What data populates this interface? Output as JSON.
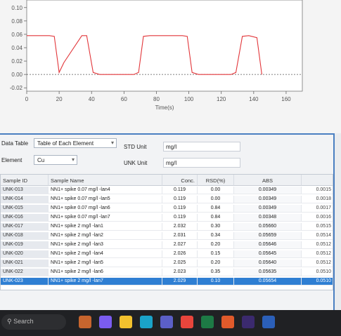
{
  "chart_data": {
    "type": "line",
    "xlabel": "Time(s)",
    "x_ticks": [
      "0",
      "20",
      "40",
      "60",
      "80",
      "100",
      "120",
      "140",
      "160"
    ],
    "y_ticks": [
      "0.10",
      "0.08",
      "0.06",
      "0.04",
      "0.02",
      "0.00",
      "-0.02"
    ],
    "xlim": [
      0,
      170
    ],
    "ylim": [
      -0.025,
      0.105
    ],
    "series": [
      {
        "color": "#e2363a",
        "x": [
          0,
          14,
          17,
          20,
          23,
          34,
          37,
          41,
          45,
          66,
          69,
          72,
          76,
          96,
          99,
          102,
          106,
          126,
          129,
          133,
          137,
          142,
          145
        ],
        "y": [
          0.058,
          0.058,
          0.057,
          0.003,
          0.018,
          0.058,
          0.058,
          0.003,
          0.0,
          0.0,
          0.003,
          0.057,
          0.058,
          0.058,
          0.057,
          0.003,
          0.0,
          0.0,
          0.003,
          0.057,
          0.058,
          0.055,
          0.0
        ]
      }
    ],
    "baseline": 0.0
  },
  "dialog": {
    "data_table_label": "Data Table",
    "data_table_value": "Table of Each Element",
    "element_label": "Element",
    "element_value": "Cu",
    "std_unit_label": "STD Unit",
    "std_unit_value": "mg/l",
    "unk_unit_label": "UNK Unit",
    "unk_unit_value": "mg/l"
  },
  "table": {
    "headers": [
      "Sample ID",
      "Sample Name",
      "Conc.",
      "RSD(%)",
      "ABS",
      ""
    ],
    "rows": [
      {
        "id": "UNK-013",
        "name": "NN1+ spike 0.07 mg/l -lan4",
        "conc": "0.119",
        "rsd": "0.00",
        "abs": "0.00349",
        "extra": "0.0015"
      },
      {
        "id": "UNK-014",
        "name": "NN1+ spike 0.07 mg/l -lan5",
        "conc": "0.119",
        "rsd": "0.00",
        "abs": "0.00349",
        "extra": "0.0018"
      },
      {
        "id": "UNK-015",
        "name": "NN1+ spike 0.07 mg/l -lan6",
        "conc": "0.119",
        "rsd": "0.84",
        "abs": "0.00349",
        "extra": "0.0017"
      },
      {
        "id": "UNK-016",
        "name": "NN1+ spike 0.07 mg/l -lan7",
        "conc": "0.119",
        "rsd": "0.84",
        "abs": "0.00348",
        "extra": "0.0016"
      },
      {
        "id": "UNK-017",
        "name": "NN1+ spike 2 mg/l -lan1",
        "conc": "2.032",
        "rsd": "0.30",
        "abs": "0.05660",
        "extra": "0.0515"
      },
      {
        "id": "UNK-018",
        "name": "NN1+ spike 2 mg/l -lan2",
        "conc": "2.031",
        "rsd": "0.34",
        "abs": "0.05659",
        "extra": "0.0514"
      },
      {
        "id": "UNK-019",
        "name": "NN1+ spike 2 mg/l -lan3",
        "conc": "2.027",
        "rsd": "0.20",
        "abs": "0.05646",
        "extra": "0.0512"
      },
      {
        "id": "UNK-020",
        "name": "NN1+ spike 2 mg/l -lan4",
        "conc": "2.026",
        "rsd": "0.15",
        "abs": "0.05645",
        "extra": "0.0512"
      },
      {
        "id": "UNK-021",
        "name": "NN1+ spike 2 mg/l -lan5",
        "conc": "2.025",
        "rsd": "0.20",
        "abs": "0.05640",
        "extra": "0.0512"
      },
      {
        "id": "UNK-022",
        "name": "NN1+ spike 2 mg/l -lan6",
        "conc": "2.023",
        "rsd": "0.35",
        "abs": "0.05635",
        "extra": "0.0510"
      },
      {
        "id": "UNK-023",
        "name": "NN1+ spike 2 mg/l -lan7",
        "conc": "2.029",
        "rsd": "0.10",
        "abs": "0.05654",
        "extra": "0.0510"
      }
    ],
    "selected_row": 10
  },
  "taskbar": {
    "search_placeholder": "Search",
    "icons": [
      {
        "name": "widgets-icon",
        "color": "#c7652e"
      },
      {
        "name": "copilot-icon",
        "color": "#7b5cf0"
      },
      {
        "name": "file-explorer-icon",
        "color": "#f2c12e"
      },
      {
        "name": "edge-icon",
        "color": "#1aa3c9"
      },
      {
        "name": "teams-icon",
        "color": "#5b5fc7"
      },
      {
        "name": "chrome-icon",
        "color": "#e8453c"
      },
      {
        "name": "excel-icon",
        "color": "#1d7a45"
      },
      {
        "name": "snipping-icon",
        "color": "#e05a2b"
      },
      {
        "name": "app-icon",
        "color": "#3b2a6e"
      },
      {
        "name": "word-icon",
        "color": "#2b5fb8"
      }
    ]
  }
}
